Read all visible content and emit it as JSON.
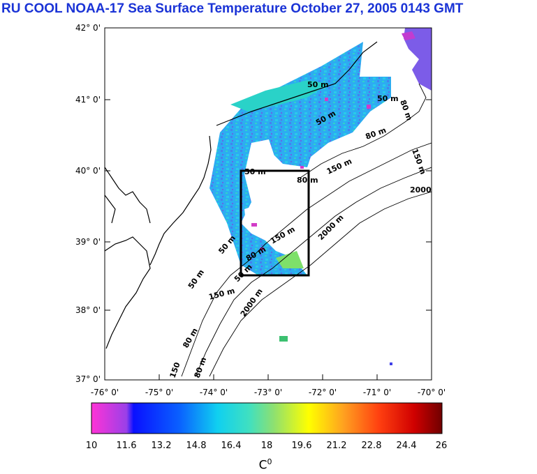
{
  "title": "RU COOL  NOAA-17 Sea Surface Temperature October 27, 2005 0143 GMT",
  "latitude_labels": [
    "42° 0'",
    "41° 0'",
    "40° 0'",
    "39° 0'",
    "38° 0'",
    "37° 0'"
  ],
  "longitude_labels": [
    "-76° 0'",
    "-75° 0'",
    "-74° 0'",
    "-73° 0'",
    "-72° 0'",
    "-71° 0'",
    "-70° 0'"
  ],
  "contour_labels": [
    "50 m",
    "50 m",
    "80 m",
    "150 m",
    "50 m",
    "80 m",
    "150 m",
    "2000",
    "80 m",
    "50 m",
    "50 m",
    "80 m",
    "150 m",
    "2000 m",
    "50 m",
    "150 m",
    "2000 m",
    "80 m",
    "150",
    "80 m",
    "50 m"
  ],
  "colorbar": {
    "ticks": [
      "10",
      "11.6",
      "13.2",
      "14.8",
      "16.4",
      "18",
      "19.6",
      "21.2",
      "22.8",
      "24.4",
      "26"
    ],
    "unit_base": "C",
    "unit_sup": "0",
    "min": 10,
    "max": 26
  },
  "colors": {
    "title": "#1a33d6",
    "frame": "#000000"
  }
}
